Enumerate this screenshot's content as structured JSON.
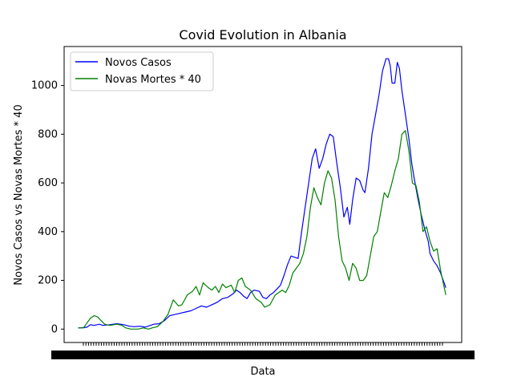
{
  "chart_data": {
    "type": "line",
    "title": "Covid Evolution in Albania",
    "xlabel": "Data",
    "ylabel": "Novos Casos vs Novas Mortes * 40",
    "x_tick_labels_note": "dense overlapping date labels",
    "xlim": [
      0,
      1
    ],
    "ylim": [
      -55,
      1160
    ],
    "yticks": [
      0,
      200,
      400,
      600,
      800,
      1000
    ],
    "legend_position": "upper left",
    "series": [
      {
        "name": "Novos Casos",
        "color": "#0000ff",
        "points": [
          [
            0.0,
            5
          ],
          [
            0.015,
            6
          ],
          [
            0.025,
            8
          ],
          [
            0.035,
            18
          ],
          [
            0.045,
            15
          ],
          [
            0.06,
            20
          ],
          [
            0.07,
            15
          ],
          [
            0.09,
            18
          ],
          [
            0.11,
            22
          ],
          [
            0.13,
            18
          ],
          [
            0.145,
            12
          ],
          [
            0.16,
            10
          ],
          [
            0.175,
            12
          ],
          [
            0.19,
            8
          ],
          [
            0.205,
            15
          ],
          [
            0.215,
            20
          ],
          [
            0.23,
            22
          ],
          [
            0.245,
            35
          ],
          [
            0.26,
            55
          ],
          [
            0.275,
            60
          ],
          [
            0.29,
            65
          ],
          [
            0.305,
            70
          ],
          [
            0.32,
            75
          ],
          [
            0.335,
            85
          ],
          [
            0.35,
            95
          ],
          [
            0.365,
            90
          ],
          [
            0.38,
            100
          ],
          [
            0.395,
            110
          ],
          [
            0.41,
            125
          ],
          [
            0.425,
            130
          ],
          [
            0.44,
            145
          ],
          [
            0.45,
            160
          ],
          [
            0.46,
            150
          ],
          [
            0.47,
            135
          ],
          [
            0.48,
            125
          ],
          [
            0.49,
            150
          ],
          [
            0.5,
            160
          ],
          [
            0.515,
            155
          ],
          [
            0.525,
            130
          ],
          [
            0.535,
            125
          ],
          [
            0.545,
            140
          ],
          [
            0.555,
            150
          ],
          [
            0.565,
            165
          ],
          [
            0.575,
            180
          ],
          [
            0.585,
            220
          ],
          [
            0.595,
            265
          ],
          [
            0.605,
            300
          ],
          [
            0.615,
            295
          ],
          [
            0.625,
            290
          ],
          [
            0.635,
            400
          ],
          [
            0.645,
            500
          ],
          [
            0.655,
            600
          ],
          [
            0.665,
            700
          ],
          [
            0.675,
            740
          ],
          [
            0.685,
            660
          ],
          [
            0.695,
            700
          ],
          [
            0.705,
            760
          ],
          [
            0.715,
            800
          ],
          [
            0.725,
            790
          ],
          [
            0.735,
            680
          ],
          [
            0.745,
            580
          ],
          [
            0.755,
            460
          ],
          [
            0.765,
            500
          ],
          [
            0.772,
            430
          ],
          [
            0.78,
            530
          ],
          [
            0.79,
            620
          ],
          [
            0.8,
            610
          ],
          [
            0.81,
            570
          ],
          [
            0.815,
            560
          ],
          [
            0.825,
            660
          ],
          [
            0.835,
            800
          ],
          [
            0.845,
            880
          ],
          [
            0.855,
            960
          ],
          [
            0.865,
            1060
          ],
          [
            0.875,
            1110
          ],
          [
            0.882,
            1110
          ],
          [
            0.887,
            1080
          ],
          [
            0.892,
            1010
          ],
          [
            0.9,
            1010
          ],
          [
            0.907,
            1095
          ],
          [
            0.913,
            1070
          ],
          [
            0.92,
            980
          ],
          [
            0.93,
            880
          ],
          [
            0.94,
            780
          ],
          [
            0.948,
            680
          ],
          [
            0.955,
            620
          ],
          [
            0.965,
            540
          ],
          [
            0.975,
            470
          ],
          [
            0.985,
            410
          ],
          [
            0.995,
            360
          ],
          [
            1.0,
            310
          ],
          [
            1.01,
            280
          ],
          [
            1.02,
            260
          ],
          [
            1.03,
            230
          ],
          [
            1.045,
            170
          ]
        ]
      },
      {
        "name": "Novas Mortes * 40",
        "color": "#008000",
        "points": [
          [
            0.0,
            5
          ],
          [
            0.015,
            5
          ],
          [
            0.025,
            25
          ],
          [
            0.035,
            45
          ],
          [
            0.045,
            55
          ],
          [
            0.055,
            50
          ],
          [
            0.065,
            35
          ],
          [
            0.075,
            20
          ],
          [
            0.09,
            15
          ],
          [
            0.11,
            20
          ],
          [
            0.125,
            15
          ],
          [
            0.135,
            5
          ],
          [
            0.15,
            0
          ],
          [
            0.17,
            0
          ],
          [
            0.185,
            5
          ],
          [
            0.2,
            0
          ],
          [
            0.21,
            5
          ],
          [
            0.225,
            10
          ],
          [
            0.24,
            30
          ],
          [
            0.255,
            60
          ],
          [
            0.27,
            120
          ],
          [
            0.285,
            95
          ],
          [
            0.295,
            100
          ],
          [
            0.31,
            140
          ],
          [
            0.325,
            155
          ],
          [
            0.335,
            175
          ],
          [
            0.345,
            140
          ],
          [
            0.355,
            190
          ],
          [
            0.37,
            170
          ],
          [
            0.38,
            160
          ],
          [
            0.39,
            175
          ],
          [
            0.4,
            150
          ],
          [
            0.41,
            185
          ],
          [
            0.42,
            170
          ],
          [
            0.435,
            180
          ],
          [
            0.445,
            150
          ],
          [
            0.455,
            200
          ],
          [
            0.465,
            210
          ],
          [
            0.475,
            175
          ],
          [
            0.49,
            160
          ],
          [
            0.505,
            125
          ],
          [
            0.52,
            110
          ],
          [
            0.53,
            90
          ],
          [
            0.545,
            100
          ],
          [
            0.56,
            140
          ],
          [
            0.57,
            150
          ],
          [
            0.58,
            160
          ],
          [
            0.59,
            150
          ],
          [
            0.6,
            180
          ],
          [
            0.61,
            230
          ],
          [
            0.62,
            250
          ],
          [
            0.63,
            270
          ],
          [
            0.64,
            310
          ],
          [
            0.65,
            380
          ],
          [
            0.66,
            500
          ],
          [
            0.67,
            580
          ],
          [
            0.68,
            540
          ],
          [
            0.69,
            510
          ],
          [
            0.7,
            600
          ],
          [
            0.71,
            650
          ],
          [
            0.72,
            620
          ],
          [
            0.73,
            530
          ],
          [
            0.74,
            380
          ],
          [
            0.75,
            280
          ],
          [
            0.76,
            250
          ],
          [
            0.77,
            200
          ],
          [
            0.78,
            270
          ],
          [
            0.79,
            250
          ],
          [
            0.8,
            200
          ],
          [
            0.81,
            200
          ],
          [
            0.82,
            220
          ],
          [
            0.83,
            300
          ],
          [
            0.84,
            380
          ],
          [
            0.85,
            400
          ],
          [
            0.86,
            480
          ],
          [
            0.87,
            560
          ],
          [
            0.88,
            540
          ],
          [
            0.89,
            590
          ],
          [
            0.9,
            650
          ],
          [
            0.91,
            700
          ],
          [
            0.92,
            800
          ],
          [
            0.93,
            815
          ],
          [
            0.94,
            730
          ],
          [
            0.95,
            600
          ],
          [
            0.96,
            590
          ],
          [
            0.97,
            520
          ],
          [
            0.98,
            400
          ],
          [
            0.99,
            420
          ],
          [
            1.0,
            360
          ],
          [
            1.01,
            320
          ],
          [
            1.02,
            330
          ],
          [
            1.03,
            240
          ],
          [
            1.045,
            140
          ]
        ]
      }
    ]
  }
}
